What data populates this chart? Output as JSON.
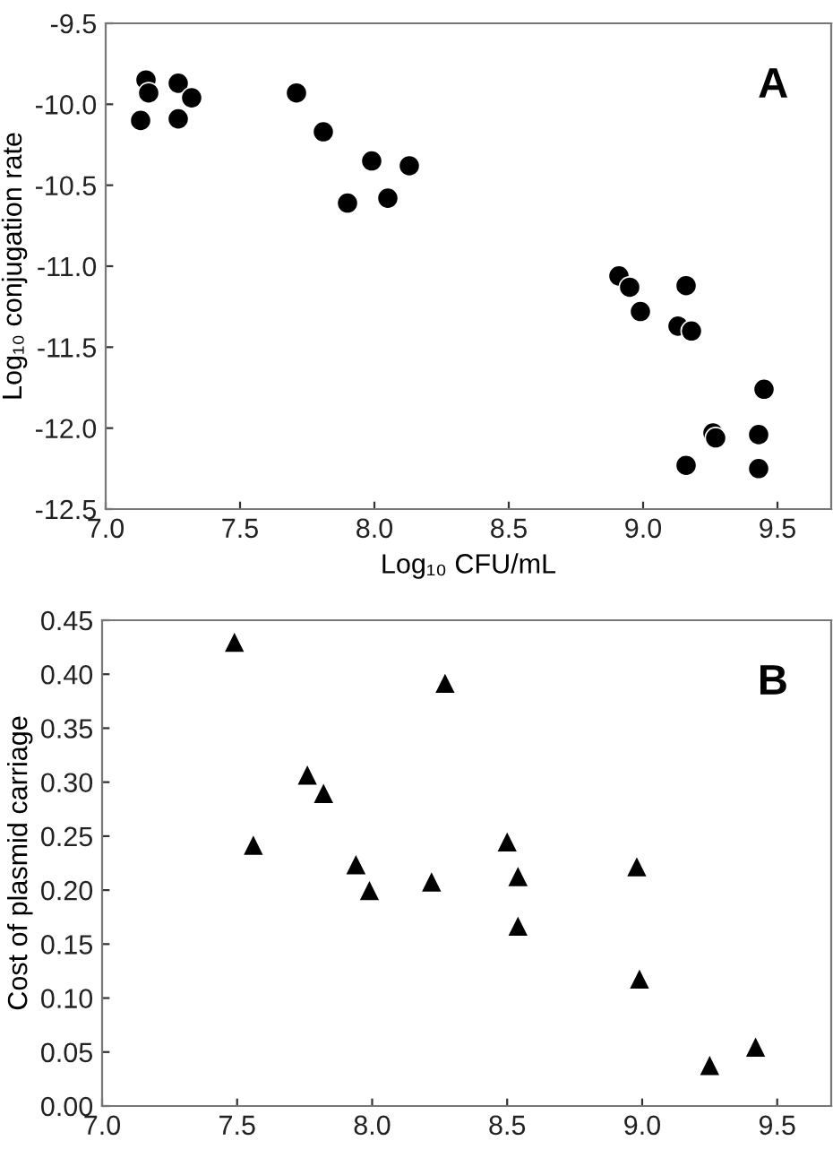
{
  "chart_data": [
    {
      "type": "scatter",
      "xlabel": "Log₁₀ CFU/mL",
      "ylabel": "Log₁₀ conjugation rate",
      "annotations": [
        "A"
      ],
      "marker": "circle",
      "x": [
        7.13,
        7.15,
        7.16,
        7.27,
        7.27,
        7.32,
        7.71,
        7.81,
        7.99,
        8.13,
        7.9,
        8.05,
        8.91,
        8.95,
        8.99,
        9.16,
        9.13,
        9.18,
        9.45,
        9.26,
        9.27,
        9.43,
        9.16,
        9.43
      ],
      "series": [
        {
          "color": "#000000",
          "values": [
            -10.1,
            -9.85,
            -9.93,
            -9.87,
            -10.09,
            -9.96,
            -9.93,
            -10.17,
            -10.35,
            -10.38,
            -10.61,
            -10.58,
            -11.06,
            -11.13,
            -11.28,
            -11.12,
            -11.37,
            -11.4,
            -11.76,
            -12.03,
            -12.06,
            -12.04,
            -12.23,
            -12.25
          ]
        }
      ],
      "xlim": [
        7.0,
        9.7
      ],
      "xticks": [
        {
          "value": 7.0,
          "label": "7.0"
        },
        {
          "value": 7.5,
          "label": "7.5"
        },
        {
          "value": 8.0,
          "label": "8.0"
        },
        {
          "value": 8.5,
          "label": "8.5"
        },
        {
          "value": 9.0,
          "label": "9.0"
        },
        {
          "value": 9.5,
          "label": "9.5"
        }
      ],
      "ylim": [
        -12.5,
        -9.5
      ],
      "yticks": [
        {
          "value": -12.5,
          "label": "-12.5"
        },
        {
          "value": -12.0,
          "label": "-12.0"
        },
        {
          "value": -11.5,
          "label": "-11.5"
        },
        {
          "value": -11.0,
          "label": "-11.0"
        },
        {
          "value": -10.5,
          "label": "-10.5"
        },
        {
          "value": -10.0,
          "label": "-10.0"
        },
        {
          "value": -9.5,
          "label": "-9.5"
        }
      ]
    },
    {
      "type": "scatter",
      "ylabel": "Cost of plasmid carriage",
      "annotations": [
        "B"
      ],
      "marker": "triangle",
      "x": [
        7.49,
        7.56,
        7.76,
        7.82,
        7.94,
        7.99,
        8.22,
        8.27,
        8.5,
        8.54,
        8.54,
        8.98,
        8.99,
        9.25,
        9.42
      ],
      "series": [
        {
          "color": "#000000",
          "values": [
            0.43,
            0.242,
            0.307,
            0.29,
            0.224,
            0.2,
            0.208,
            0.392,
            0.245,
            0.213,
            0.167,
            0.222,
            0.118,
            0.038,
            0.055
          ]
        }
      ],
      "xlim": [
        7.0,
        9.7
      ],
      "xticks": [
        {
          "value": 7.0,
          "label": "7.0"
        },
        {
          "value": 7.5,
          "label": "7.5"
        },
        {
          "value": 8.0,
          "label": "8.0"
        },
        {
          "value": 8.5,
          "label": "8.5"
        },
        {
          "value": 9.0,
          "label": "9.0"
        },
        {
          "value": 9.5,
          "label": "9.5"
        }
      ],
      "ylim": [
        0.0,
        0.45
      ],
      "yticks": [
        {
          "value": 0.0,
          "label": "0.00"
        },
        {
          "value": 0.05,
          "label": "0.05"
        },
        {
          "value": 0.1,
          "label": "0.10"
        },
        {
          "value": 0.15,
          "label": "0.15"
        },
        {
          "value": 0.2,
          "label": "0.20"
        },
        {
          "value": 0.25,
          "label": "0.25"
        },
        {
          "value": 0.3,
          "label": "0.30"
        },
        {
          "value": 0.35,
          "label": "0.35"
        },
        {
          "value": 0.4,
          "label": "0.40"
        },
        {
          "value": 0.45,
          "label": "0.45"
        }
      ]
    }
  ]
}
